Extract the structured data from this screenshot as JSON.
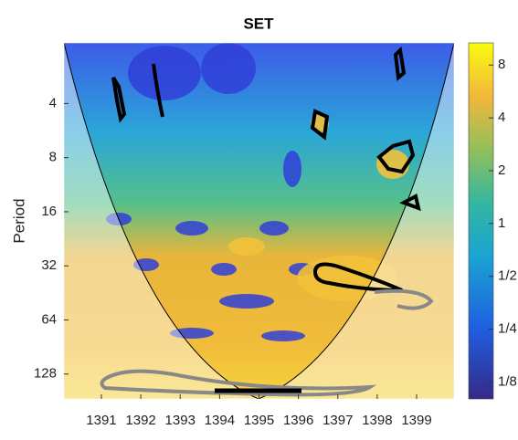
{
  "chart_data": {
    "type": "wavelet",
    "title": "SET",
    "ylabel": "Period",
    "xlim": [
      1390.05,
      1399.95
    ],
    "xticks": [
      1391,
      1392,
      1393,
      1394,
      1395,
      1396,
      1397,
      1398,
      1399
    ],
    "ylim": [
      1.84,
      176
    ],
    "yticks": [
      4,
      8,
      16,
      32,
      64,
      128
    ],
    "ylog": true,
    "clim": [
      0.1,
      10.7
    ],
    "cticks": [
      8,
      4,
      2,
      1,
      {
        "value": 0.5,
        "label": "1/2"
      },
      {
        "value": 0.25,
        "label": "1/4"
      },
      {
        "value": 0.125,
        "label": "1/8"
      }
    ],
    "clog": true
  }
}
